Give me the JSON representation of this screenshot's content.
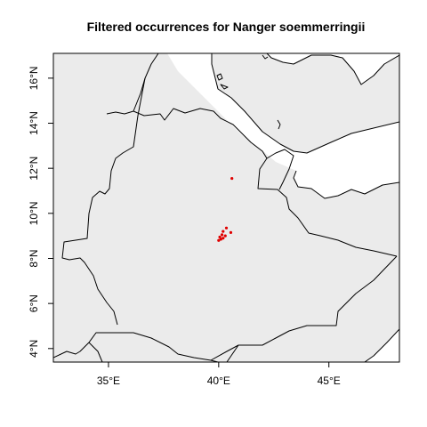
{
  "title": "Filtered occurrences for Nanger soemmerringii",
  "colors": {
    "land": "#ebebeb",
    "sea": "#ffffff",
    "border": "#000000",
    "point": "#e00000"
  },
  "chart_data": {
    "type": "scatter",
    "title": "Filtered occurrences for Nanger soemmerringii",
    "xlim": [
      32.5,
      48.2
    ],
    "ylim": [
      3.4,
      17.1
    ],
    "x_ticks": [
      {
        "value": 35,
        "label": "35°E"
      },
      {
        "value": 40,
        "label": "40°E"
      },
      {
        "value": 45,
        "label": "45°E"
      }
    ],
    "y_ticks": [
      {
        "value": 4,
        "label": "4°N"
      },
      {
        "value": 6,
        "label": "6°N"
      },
      {
        "value": 8,
        "label": "8°N"
      },
      {
        "value": 10,
        "label": "10°N"
      },
      {
        "value": 12,
        "label": "12°N"
      },
      {
        "value": 14,
        "label": "14°N"
      },
      {
        "value": 16,
        "label": "16°N"
      }
    ],
    "grid": false,
    "points": [
      {
        "lon": 40.6,
        "lat": 11.55
      },
      {
        "lon": 40.35,
        "lat": 9.35
      },
      {
        "lon": 40.55,
        "lat": 9.15
      },
      {
        "lon": 40.2,
        "lat": 9.2
      },
      {
        "lon": 40.15,
        "lat": 9.05
      },
      {
        "lon": 40.3,
        "lat": 9.0
      },
      {
        "lon": 40.05,
        "lat": 8.95
      },
      {
        "lon": 40.2,
        "lat": 8.9
      },
      {
        "lon": 40.1,
        "lat": 8.85
      },
      {
        "lon": 40.0,
        "lat": 8.8
      }
    ]
  }
}
